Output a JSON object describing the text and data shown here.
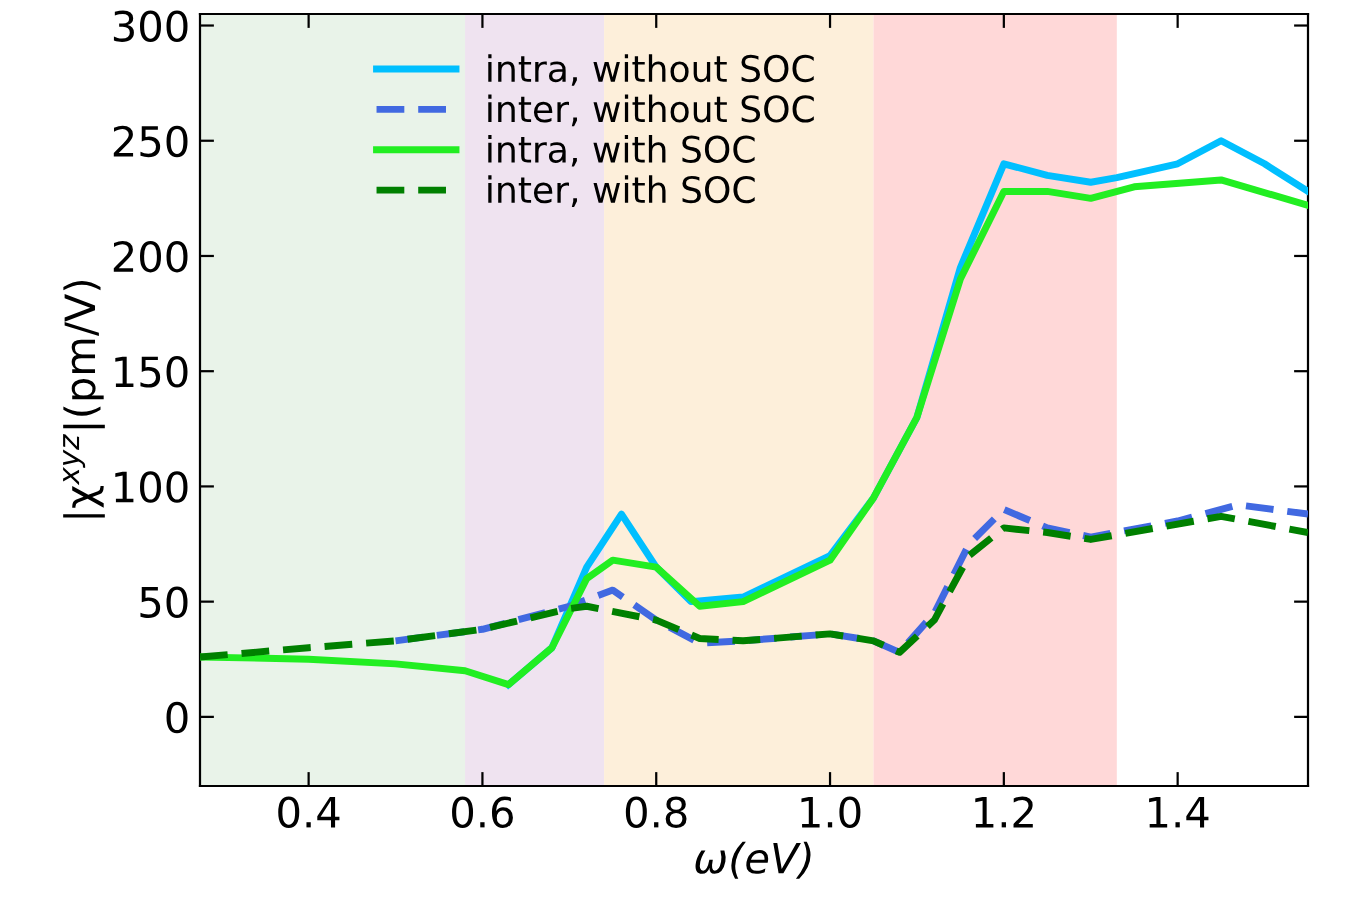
{
  "chart_data": {
    "type": "line",
    "xlabel": "ω(eV)",
    "ylabel": "|χ$^{xyz}$|(pm/V)",
    "xlim": [
      0.275,
      1.55
    ],
    "ylim": [
      -30,
      305
    ],
    "xticks": [
      {
        "value": 0.4,
        "label": "0.4"
      },
      {
        "value": 0.6,
        "label": "0.6"
      },
      {
        "value": 0.8,
        "label": "0.8"
      },
      {
        "value": 1.0,
        "label": "1.0"
      },
      {
        "value": 1.2,
        "label": "1.2"
      },
      {
        "value": 1.4,
        "label": "1.4"
      }
    ],
    "yticks": [
      0,
      50,
      100,
      150,
      200,
      250,
      300
    ],
    "grid": false,
    "legend": "top left",
    "marker": "none",
    "bands": [
      {
        "axis": "x",
        "from": 0.275,
        "to": 0.58,
        "color": "#e9f3e9"
      },
      {
        "axis": "x",
        "from": 0.58,
        "to": 0.74,
        "color": "#efe3f0"
      },
      {
        "axis": "x",
        "from": 0.74,
        "to": 1.05,
        "color": "#fdefda"
      },
      {
        "axis": "x",
        "from": 1.05,
        "to": 1.33,
        "color": "#ffd8d8"
      }
    ],
    "series": [
      {
        "name": "intra, without SOC",
        "color": "#00bfff",
        "line_style": "solid",
        "x": [
          0.63,
          0.68,
          0.72,
          0.76,
          0.8,
          0.84,
          0.9,
          1.0,
          1.05,
          1.1,
          1.15,
          1.2,
          1.25,
          1.3,
          1.33,
          1.4,
          1.45,
          1.5,
          1.55
        ],
        "values": [
          14,
          30,
          65,
          88,
          65,
          50,
          52,
          70,
          95,
          130,
          195,
          240,
          235,
          232,
          234,
          240,
          250,
          240,
          228
        ]
      },
      {
        "name": "inter, without SOC",
        "color": "#4169e1",
        "line_style": "dashed",
        "x": [
          0.5,
          0.6,
          0.7,
          0.75,
          0.8,
          0.85,
          0.9,
          1.0,
          1.05,
          1.08,
          1.12,
          1.16,
          1.2,
          1.25,
          1.3,
          1.4,
          1.47,
          1.55
        ],
        "values": [
          33,
          38,
          48,
          55,
          42,
          32,
          33,
          36,
          33,
          28,
          45,
          75,
          90,
          82,
          78,
          85,
          92,
          88
        ]
      },
      {
        "name": "intra, with SOC",
        "color": "#22ee22",
        "line_style": "solid",
        "x": [
          0.275,
          0.4,
          0.5,
          0.58,
          0.63,
          0.68,
          0.72,
          0.75,
          0.8,
          0.85,
          0.9,
          1.0,
          1.05,
          1.1,
          1.15,
          1.2,
          1.25,
          1.3,
          1.35,
          1.45,
          1.55
        ],
        "values": [
          26,
          25,
          23,
          20,
          14,
          30,
          60,
          68,
          65,
          48,
          50,
          68,
          95,
          130,
          190,
          228,
          228,
          225,
          230,
          233,
          222
        ]
      },
      {
        "name": "inter, with SOC",
        "color": "#008000",
        "line_style": "dashed",
        "x": [
          0.275,
          0.4,
          0.5,
          0.6,
          0.7,
          0.72,
          0.8,
          0.85,
          0.9,
          1.0,
          1.05,
          1.08,
          1.12,
          1.16,
          1.2,
          1.25,
          1.3,
          1.45,
          1.55
        ],
        "values": [
          26,
          30,
          33,
          38,
          47,
          48,
          42,
          34,
          33,
          36,
          33,
          28,
          42,
          70,
          82,
          80,
          77,
          87,
          80
        ]
      }
    ]
  }
}
